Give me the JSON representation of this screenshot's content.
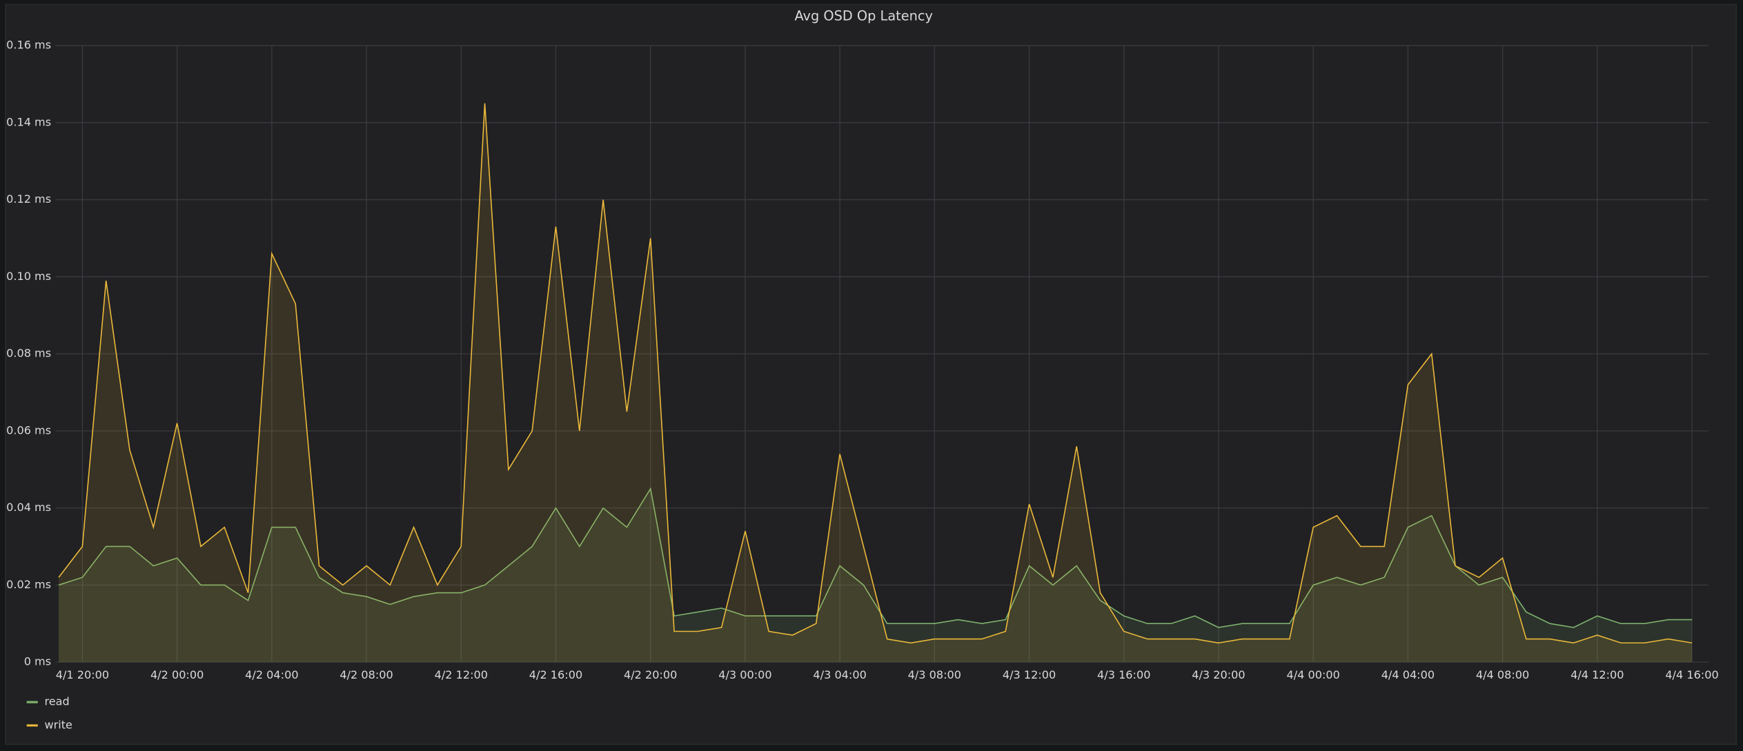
{
  "chart_data": {
    "type": "line",
    "title": "Avg OSD Op Latency",
    "x": [
      "4/1 19:00",
      "4/1 20:00",
      "4/1 21:00",
      "4/1 22:00",
      "4/1 23:00",
      "4/2 00:00",
      "4/2 01:00",
      "4/2 02:00",
      "4/2 03:00",
      "4/2 04:00",
      "4/2 05:00",
      "4/2 06:00",
      "4/2 07:00",
      "4/2 08:00",
      "4/2 09:00",
      "4/2 10:00",
      "4/2 11:00",
      "4/2 12:00",
      "4/2 13:00",
      "4/2 14:00",
      "4/2 15:00",
      "4/2 16:00",
      "4/2 17:00",
      "4/2 18:00",
      "4/2 19:00",
      "4/2 20:00",
      "4/2 21:00",
      "4/2 22:00",
      "4/2 23:00",
      "4/3 00:00",
      "4/3 01:00",
      "4/3 02:00",
      "4/3 03:00",
      "4/3 04:00",
      "4/3 05:00",
      "4/3 06:00",
      "4/3 07:00",
      "4/3 08:00",
      "4/3 09:00",
      "4/3 10:00",
      "4/3 11:00",
      "4/3 12:00",
      "4/3 13:00",
      "4/3 14:00",
      "4/3 15:00",
      "4/3 16:00",
      "4/3 17:00",
      "4/3 18:00",
      "4/3 19:00",
      "4/3 20:00",
      "4/3 21:00",
      "4/3 22:00",
      "4/3 23:00",
      "4/4 00:00",
      "4/4 01:00",
      "4/4 02:00",
      "4/4 03:00",
      "4/4 04:00",
      "4/4 05:00",
      "4/4 06:00",
      "4/4 07:00",
      "4/4 08:00",
      "4/4 09:00",
      "4/4 10:00",
      "4/4 11:00",
      "4/4 12:00",
      "4/4 13:00",
      "4/4 14:00",
      "4/4 15:00",
      "4/4 16:00"
    ],
    "series": [
      {
        "name": "read",
        "color": "#7eb26d",
        "values": [
          0.02,
          0.022,
          0.03,
          0.03,
          0.025,
          0.027,
          0.02,
          0.02,
          0.016,
          0.035,
          0.035,
          0.022,
          0.018,
          0.017,
          0.015,
          0.017,
          0.018,
          0.018,
          0.02,
          0.025,
          0.03,
          0.04,
          0.03,
          0.04,
          0.035,
          0.045,
          0.012,
          0.013,
          0.014,
          0.012,
          0.012,
          0.012,
          0.012,
          0.025,
          0.02,
          0.01,
          0.01,
          0.01,
          0.011,
          0.01,
          0.011,
          0.025,
          0.02,
          0.025,
          0.016,
          0.012,
          0.01,
          0.01,
          0.012,
          0.009,
          0.01,
          0.01,
          0.01,
          0.02,
          0.022,
          0.02,
          0.022,
          0.035,
          0.038,
          0.025,
          0.02,
          0.022,
          0.013,
          0.01,
          0.009,
          0.012,
          0.01,
          0.01,
          0.011,
          0.011
        ]
      },
      {
        "name": "write",
        "color": "#eab839",
        "values": [
          0.022,
          0.03,
          0.099,
          0.055,
          0.035,
          0.062,
          0.03,
          0.035,
          0.018,
          0.106,
          0.093,
          0.025,
          0.02,
          0.025,
          0.02,
          0.035,
          0.02,
          0.03,
          0.145,
          0.05,
          0.06,
          0.113,
          0.06,
          0.12,
          0.065,
          0.11,
          0.008,
          0.008,
          0.009,
          0.034,
          0.008,
          0.007,
          0.01,
          0.054,
          0.03,
          0.006,
          0.005,
          0.006,
          0.006,
          0.006,
          0.008,
          0.041,
          0.022,
          0.056,
          0.018,
          0.008,
          0.006,
          0.006,
          0.006,
          0.005,
          0.006,
          0.006,
          0.006,
          0.035,
          0.038,
          0.03,
          0.03,
          0.072,
          0.08,
          0.025,
          0.022,
          0.027,
          0.006,
          0.006,
          0.005,
          0.007,
          0.005,
          0.005,
          0.006,
          0.005
        ]
      }
    ],
    "xlim": [
      "4/1 18:52",
      "4/4 16:42"
    ],
    "xticks": [
      "4/1 20:00",
      "4/2 00:00",
      "4/2 04:00",
      "4/2 08:00",
      "4/2 12:00",
      "4/2 16:00",
      "4/2 20:00",
      "4/3 00:00",
      "4/3 04:00",
      "4/3 08:00",
      "4/3 12:00",
      "4/3 16:00",
      "4/3 20:00",
      "4/4 00:00",
      "4/4 04:00",
      "4/4 08:00",
      "4/4 12:00",
      "4/4 16:00"
    ],
    "ylim": [
      0,
      0.16
    ],
    "yticks": [
      {
        "value": 0,
        "label": "0 ms"
      },
      {
        "value": 0.02,
        "label": "0.02 ms"
      },
      {
        "value": 0.04,
        "label": "0.04 ms"
      },
      {
        "value": 0.06,
        "label": "0.06 ms"
      },
      {
        "value": 0.08,
        "label": "0.08 ms"
      },
      {
        "value": 0.1,
        "label": "0.10 ms"
      },
      {
        "value": 0.12,
        "label": "0.12 ms"
      },
      {
        "value": 0.14,
        "label": "0.14 ms"
      },
      {
        "value": 0.16,
        "label": "0.16 ms"
      }
    ],
    "grid": true,
    "legend": "bottom-left"
  }
}
